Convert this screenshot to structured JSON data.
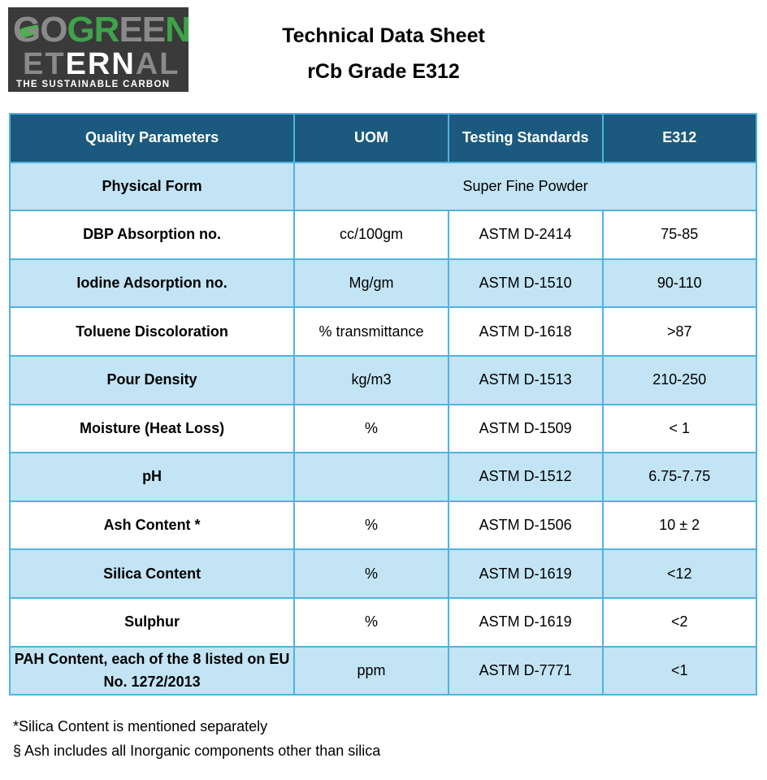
{
  "logo": {
    "line1": "GOGREEN",
    "line2": "ETERNAL",
    "tagline": "THE SUSTAINABLE CARBON",
    "colors": {
      "bg": "#3a3a3a",
      "green": "#3ea34a",
      "gray": "#8a8a8a"
    }
  },
  "title": {
    "line1": "Technical Data Sheet",
    "line2": "rCb Grade E312"
  },
  "table": {
    "headers": [
      "Quality Parameters",
      "UOM",
      "Testing Standards",
      "E312"
    ],
    "physical_form": {
      "label": "Physical Form",
      "value": "Super Fine Powder"
    },
    "rows": [
      {
        "param": "DBP Absorption no.",
        "uom": "cc/100gm",
        "standard": "ASTM D-2414",
        "value": "75-85"
      },
      {
        "param": "Iodine Adsorption no.",
        "uom": "Mg/gm",
        "standard": "ASTM D-1510",
        "value": "90-110"
      },
      {
        "param": "Toluene Discoloration",
        "uom": "% transmittance",
        "standard": "ASTM D-1618",
        "value": ">87"
      },
      {
        "param": "Pour Density",
        "uom": "kg/m3",
        "standard": "ASTM D-1513",
        "value": "210-250"
      },
      {
        "param": "Moisture (Heat Loss)",
        "uom": "%",
        "standard": "ASTM D-1509",
        "value": "< 1"
      },
      {
        "param": "pH",
        "uom": "",
        "standard": "ASTM D-1512",
        "value": "6.75-7.75"
      },
      {
        "param": "Ash Content *",
        "uom": "%",
        "standard": "ASTM D-1506",
        "value": "10 ± 2"
      },
      {
        "param": "Silica Content",
        "uom": "%",
        "standard": "ASTM D-1619",
        "value": "<12"
      },
      {
        "param": "Sulphur",
        "uom": "%",
        "standard": "ASTM D-1619",
        "value": "<2"
      },
      {
        "param": "PAH Content, each of the 8 listed on EU No. 1272/2013",
        "uom": "ppm",
        "standard": "ASTM D-7771",
        "value": "<1"
      }
    ],
    "colors": {
      "header": "#1b5a7e",
      "alt_row": "#c2e4f4",
      "border": "#4fb3e0"
    }
  },
  "notes": [
    "*Silica Content is mentioned separately",
    "§ Ash includes all Inorganic components other than silica"
  ]
}
